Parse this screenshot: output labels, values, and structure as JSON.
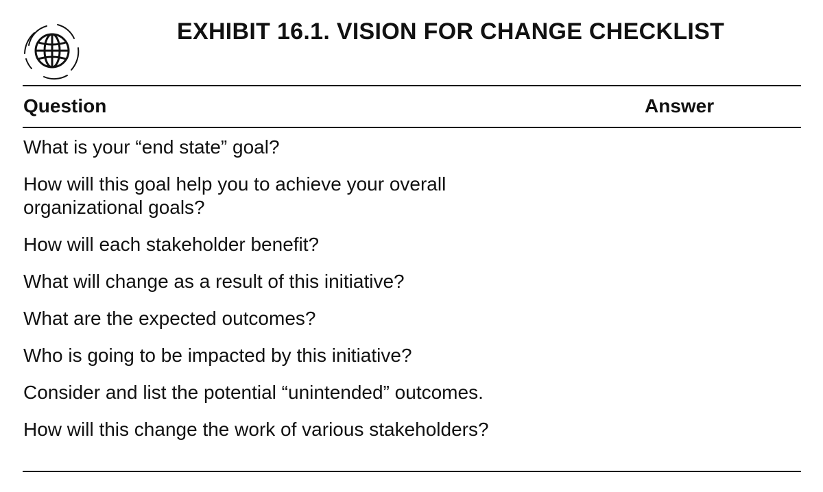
{
  "exhibit": {
    "title": "EXHIBIT 16.1. VISION FOR CHANGE CHECKLIST",
    "icon": "globe-icon"
  },
  "table": {
    "headers": {
      "question": "Question",
      "answer": "Answer"
    },
    "rows": [
      "What is your “end state” goal?",
      "How will this goal help you to achieve your overall organizational goals?",
      "How will each stakeholder benefit?",
      "What will change as a result of this initiative?",
      "What are the expected outcomes?",
      "Who is going to be impacted by this initiative?",
      "Consider and list the potential “unintended” outcomes.",
      "How will this change the work of various stakeholders?"
    ]
  }
}
